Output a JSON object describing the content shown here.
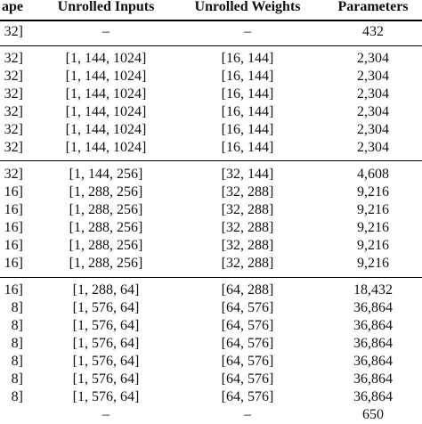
{
  "table": {
    "headers": [
      "ape",
      "Unrolled Inputs",
      "Unrolled Weights",
      "Parameters"
    ],
    "rows": [
      [
        "32]",
        "–",
        "–",
        "432"
      ],
      [
        "32]",
        "[1, 144, 1024]",
        "[16, 144]",
        "2,304"
      ],
      [
        "32]",
        "[1, 144, 1024]",
        "[16, 144]",
        "2,304"
      ],
      [
        "32]",
        "[1, 144, 1024]",
        "[16, 144]",
        "2,304"
      ],
      [
        "32]",
        "[1, 144, 1024]",
        "[16, 144]",
        "2,304"
      ],
      [
        "32]",
        "[1, 144, 1024]",
        "[16, 144]",
        "2,304"
      ],
      [
        "32]",
        "[1, 144, 1024]",
        "[16, 144]",
        "2,304"
      ],
      [
        "32]",
        "[1, 144, 256]",
        "[32, 144]",
        "4,608"
      ],
      [
        "16]",
        "[1, 288, 256]",
        "[32, 288]",
        "9,216"
      ],
      [
        "16]",
        "[1, 288, 256]",
        "[32, 288]",
        "9,216"
      ],
      [
        "16]",
        "[1, 288, 256]",
        "[32, 288]",
        "9,216"
      ],
      [
        "16]",
        "[1, 288, 256]",
        "[32, 288]",
        "9,216"
      ],
      [
        "16]",
        "[1, 288, 256]",
        "[32, 288]",
        "9,216"
      ],
      [
        "16]",
        "[1, 288, 64]",
        "[64, 288]",
        "18,432"
      ],
      [
        "8]",
        "[1, 576, 64]",
        "[64, 576]",
        "36,864"
      ],
      [
        "8]",
        "[1, 576, 64]",
        "[64, 576]",
        "36,864"
      ],
      [
        "8]",
        "[1, 576, 64]",
        "[64, 576]",
        "36,864"
      ],
      [
        "8]",
        "[1, 576, 64]",
        "[64, 576]",
        "36,864"
      ],
      [
        "8]",
        "[1, 576, 64]",
        "[64, 576]",
        "36,864"
      ],
      [
        "8]",
        "[1, 576, 64]",
        "[64, 576]",
        "36,864"
      ],
      [
        "",
        "–",
        "–",
        "650"
      ]
    ]
  }
}
